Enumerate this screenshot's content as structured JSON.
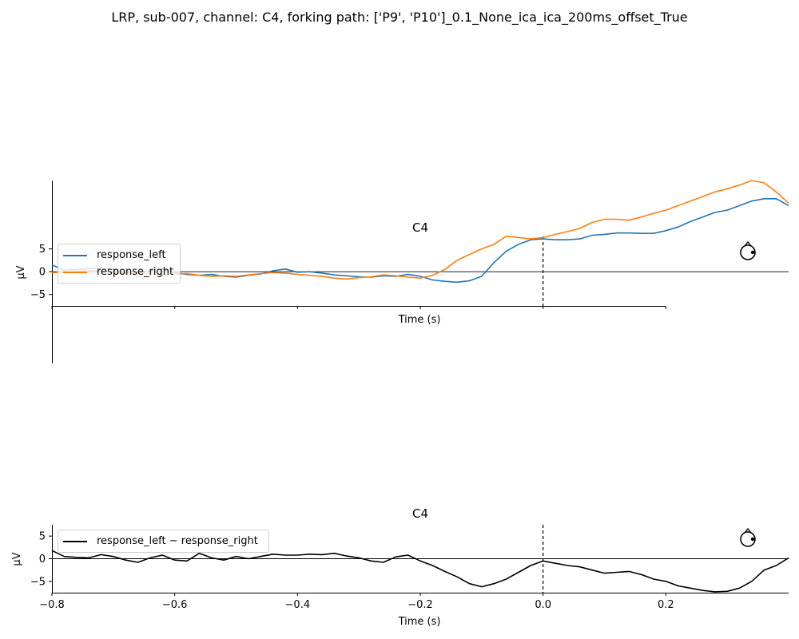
{
  "figure": {
    "title": "LRP, sub-007, channel: C4, forking path: ['P9', 'P10']_0.1_None_ica_ica_200ms_offset_True"
  },
  "colors": {
    "response_left": "#1f77b4",
    "response_right": "#ff7f0e",
    "difference": "#000000"
  },
  "chart_data": [
    {
      "type": "line",
      "title": "C4",
      "xlabel": "Time (s)",
      "ylabel": "µV",
      "xlim": [
        -0.8,
        0.4
      ],
      "ylim": [
        -7.5,
        20
      ],
      "x_ticks": [
        -0.8,
        -0.6,
        -0.4,
        -0.2,
        0.0,
        0.2
      ],
      "y_ticks": [
        -5,
        0,
        5
      ],
      "y_tick_labels": [
        "−5",
        "0",
        "5"
      ],
      "x_tick_labels_visible": false,
      "legend": [
        "response_left",
        "response_right"
      ],
      "event_marker_x": 0.0,
      "series": [
        {
          "name": "response_left",
          "color": "#1f77b4",
          "x": [
            -0.8,
            -0.78,
            -0.76,
            -0.74,
            -0.72,
            -0.7,
            -0.68,
            -0.66,
            -0.64,
            -0.62,
            -0.6,
            -0.58,
            -0.56,
            -0.54,
            -0.52,
            -0.5,
            -0.48,
            -0.46,
            -0.44,
            -0.42,
            -0.4,
            -0.38,
            -0.36,
            -0.34,
            -0.32,
            -0.3,
            -0.28,
            -0.26,
            -0.24,
            -0.22,
            -0.2,
            -0.18,
            -0.16,
            -0.14,
            -0.12,
            -0.1,
            -0.08,
            -0.06,
            -0.04,
            -0.02,
            0.0,
            0.02,
            0.04,
            0.06,
            0.08,
            0.1,
            0.12,
            0.14,
            0.16,
            0.18,
            0.2,
            0.22,
            0.24,
            0.26,
            0.28,
            0.3,
            0.32,
            0.34,
            0.36,
            0.38,
            0.4
          ],
          "values": [
            1.5,
            0.3,
            0.5,
            0.7,
            0.9,
            0.5,
            -0.3,
            -0.5,
            0.2,
            0.6,
            -0.2,
            -0.6,
            -0.8,
            -0.6,
            -1.0,
            -1.2,
            -0.8,
            -0.5,
            0.2,
            0.6,
            -0.1,
            0.0,
            -0.3,
            -0.7,
            -0.9,
            -1.1,
            -1.2,
            -0.9,
            -1.0,
            -0.6,
            -1.0,
            -1.8,
            -2.1,
            -2.3,
            -2.0,
            -1.0,
            2.0,
            4.5,
            6.0,
            7.0,
            7.2,
            7.0,
            7.0,
            7.2,
            8.0,
            8.2,
            8.5,
            8.5,
            8.4,
            8.4,
            9.0,
            9.8,
            11.0,
            12.0,
            13.0,
            13.5,
            14.5,
            15.5,
            16.0,
            16.0,
            14.5
          ]
        },
        {
          "name": "response_right",
          "color": "#ff7f0e",
          "x": [
            -0.8,
            -0.78,
            -0.76,
            -0.74,
            -0.72,
            -0.7,
            -0.68,
            -0.66,
            -0.64,
            -0.62,
            -0.6,
            -0.58,
            -0.56,
            -0.54,
            -0.52,
            -0.5,
            -0.48,
            -0.46,
            -0.44,
            -0.42,
            -0.4,
            -0.38,
            -0.36,
            -0.34,
            -0.32,
            -0.3,
            -0.28,
            -0.26,
            -0.24,
            -0.22,
            -0.2,
            -0.18,
            -0.16,
            -0.14,
            -0.12,
            -0.1,
            -0.08,
            -0.06,
            -0.04,
            -0.02,
            0.0,
            0.02,
            0.04,
            0.06,
            0.08,
            0.1,
            0.12,
            0.14,
            0.16,
            0.18,
            0.2,
            0.22,
            0.24,
            0.26,
            0.28,
            0.3,
            0.32,
            0.34,
            0.36,
            0.38,
            0.4
          ],
          "values": [
            -0.2,
            -0.1,
            0.1,
            0.3,
            0.2,
            -0.2,
            -0.4,
            -0.3,
            -0.5,
            -0.7,
            -0.6,
            -0.4,
            -0.8,
            -1.0,
            -0.9,
            -1.0,
            -0.7,
            -0.4,
            -0.2,
            -0.3,
            -0.6,
            -0.8,
            -1.0,
            -1.4,
            -1.6,
            -1.3,
            -1.1,
            -0.7,
            -0.9,
            -1.2,
            -1.4,
            -0.8,
            0.5,
            2.5,
            3.8,
            5.0,
            6.0,
            7.8,
            7.5,
            7.2,
            7.5,
            8.2,
            8.8,
            9.5,
            10.8,
            11.5,
            11.5,
            11.3,
            12.0,
            12.8,
            13.5,
            14.5,
            15.5,
            16.5,
            17.5,
            18.2,
            19.0,
            20.0,
            19.5,
            17.5,
            15.0
          ]
        }
      ]
    },
    {
      "type": "line",
      "title": "C4",
      "xlabel": "Time (s)",
      "ylabel": "µV",
      "xlim": [
        -0.8,
        0.4
      ],
      "ylim": [
        -7.5,
        7.5
      ],
      "x_ticks": [
        -0.8,
        -0.6,
        -0.4,
        -0.2,
        0.0,
        0.2
      ],
      "x_tick_labels": [
        "−0.8",
        "−0.6",
        "−0.4",
        "−0.2",
        "0.0",
        "0.2"
      ],
      "y_ticks": [
        -5,
        0,
        5
      ],
      "y_tick_labels": [
        "−5",
        "0",
        "5"
      ],
      "legend": [
        "response_left − response_right"
      ],
      "event_marker_x": 0.0,
      "series": [
        {
          "name": "response_left − response_right",
          "color": "#000000",
          "x": [
            -0.8,
            -0.78,
            -0.76,
            -0.74,
            -0.72,
            -0.7,
            -0.68,
            -0.66,
            -0.64,
            -0.62,
            -0.6,
            -0.58,
            -0.56,
            -0.54,
            -0.52,
            -0.5,
            -0.48,
            -0.46,
            -0.44,
            -0.42,
            -0.4,
            -0.38,
            -0.36,
            -0.34,
            -0.32,
            -0.3,
            -0.28,
            -0.26,
            -0.24,
            -0.22,
            -0.2,
            -0.18,
            -0.16,
            -0.14,
            -0.12,
            -0.1,
            -0.08,
            -0.06,
            -0.04,
            -0.02,
            0.0,
            0.02,
            0.04,
            0.06,
            0.08,
            0.1,
            0.12,
            0.14,
            0.16,
            0.18,
            0.2,
            0.22,
            0.24,
            0.26,
            0.28,
            0.3,
            0.32,
            0.34,
            0.36,
            0.38,
            0.4
          ],
          "values": [
            1.8,
            0.5,
            0.3,
            0.2,
            0.9,
            0.5,
            -0.3,
            -0.8,
            0.2,
            0.8,
            -0.3,
            -0.5,
            1.2,
            0.2,
            -0.3,
            0.5,
            0.0,
            0.5,
            1.0,
            0.8,
            0.8,
            1.0,
            0.9,
            1.2,
            0.6,
            0.2,
            -0.5,
            -0.8,
            0.4,
            0.8,
            -0.5,
            -1.5,
            -2.8,
            -4.0,
            -5.5,
            -6.2,
            -5.5,
            -4.5,
            -3.0,
            -1.5,
            -0.5,
            -1.0,
            -1.5,
            -1.8,
            -2.5,
            -3.2,
            -3.0,
            -2.8,
            -3.5,
            -4.5,
            -5.0,
            -6.0,
            -6.5,
            -7.0,
            -7.3,
            -7.2,
            -6.5,
            -5.0,
            -2.5,
            -1.5,
            0.2
          ]
        }
      ]
    }
  ]
}
